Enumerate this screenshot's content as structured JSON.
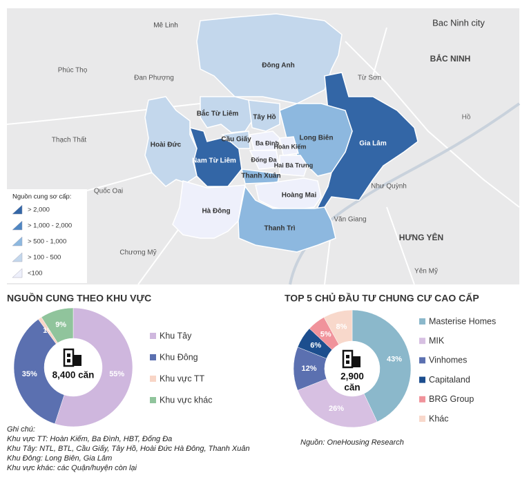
{
  "map": {
    "districts": [
      {
        "name": "Đông Anh",
        "level": 3
      },
      {
        "name": "Gia Lâm",
        "level": 0
      },
      {
        "name": "Long Biên",
        "level": 2
      },
      {
        "name": "Bắc Từ Liêm",
        "level": 3
      },
      {
        "name": "Tây Hồ",
        "level": 3
      },
      {
        "name": "Nam Từ Liêm",
        "level": 0
      },
      {
        "name": "Cầu Giấy",
        "level": 3
      },
      {
        "name": "Hoài Đức",
        "level": 3
      },
      {
        "name": "Ba Đình",
        "level": 4
      },
      {
        "name": "Hoàn Kiếm",
        "level": 4
      },
      {
        "name": "Đống Đa",
        "level": 4
      },
      {
        "name": "Hai Bà Trưng",
        "level": 4
      },
      {
        "name": "Thanh Xuân",
        "level": 2
      },
      {
        "name": "Hà Đông",
        "level": 4
      },
      {
        "name": "Hoàng Mai",
        "level": 4
      },
      {
        "name": "Thanh Trì",
        "level": 2
      }
    ],
    "places": [
      "Mê Linh",
      "Bac Ninh city",
      "BẮC NINH",
      "Phúc Thọ",
      "Đan Phượng",
      "Từ Sơn",
      "Thạch Thất",
      "Quốc Oai",
      "Chương Mỹ",
      "HƯNG YÊN",
      "Văn Giang",
      "Như Quỳnh",
      "Yên Mỹ",
      "Hồ"
    ],
    "legend": {
      "title": "Nguồn cung sơ cấp:",
      "items": [
        {
          "label": "> 2,000",
          "color": "#3366a6"
        },
        {
          "label": "> 1,000 - 2,000",
          "color": "#4f86c2"
        },
        {
          "label": "> 500 - 1,000",
          "color": "#8db8df"
        },
        {
          "label": "> 100 - 500",
          "color": "#c3d7ec"
        },
        {
          "label": "<100",
          "color": "#eef0fb"
        }
      ]
    }
  },
  "chart_data": [
    {
      "type": "pie",
      "title": "NGUỒN CUNG THEO KHU VỰC",
      "center_label": [
        "8,400 căn"
      ],
      "categories": [
        "Khu Tây",
        "Khu Đông",
        "Khu vực TT",
        "Khu vực khác"
      ],
      "values": [
        55,
        35,
        1,
        9
      ],
      "value_labels": [
        "55%",
        "35%",
        "1%",
        "9%"
      ],
      "colors": [
        "#cfb7de",
        "#5b70b0",
        "#f8d5c6",
        "#90c49c"
      ]
    },
    {
      "type": "pie",
      "title": "TOP 5 CHỦ ĐẦU TƯ CHUNG CƯ CAO CẤP",
      "center_label": [
        "2,900",
        "căn"
      ],
      "categories": [
        "Masterise Homes",
        "MIK",
        "Vinhomes",
        "Capitaland",
        "BRG Group",
        "Khác"
      ],
      "values": [
        43,
        26,
        12,
        6,
        5,
        8
      ],
      "value_labels": [
        "43%",
        "26%",
        "12%",
        "6%",
        "5%",
        "8%"
      ],
      "colors": [
        "#8bb8cb",
        "#d7c0e2",
        "#5b70b0",
        "#1c4e8e",
        "#f0939b",
        "#f8d8cb"
      ]
    }
  ],
  "notes": {
    "title": "Ghi chú:",
    "lines": [
      "Khu vực TT: Hoàn Kiếm, Ba Đình, HBT, Đống Đa",
      "Khu Tây: NTL, BTL, Cầu Giấy, Tây Hồ, Hoài Đức Hà Đông, Thanh Xuân",
      "Khu Đông: Long Biên, Gia Lâm",
      "Khu vực khác: các Quận/huyện còn lại"
    ]
  },
  "source": "Nguồn: OneHousing Research"
}
